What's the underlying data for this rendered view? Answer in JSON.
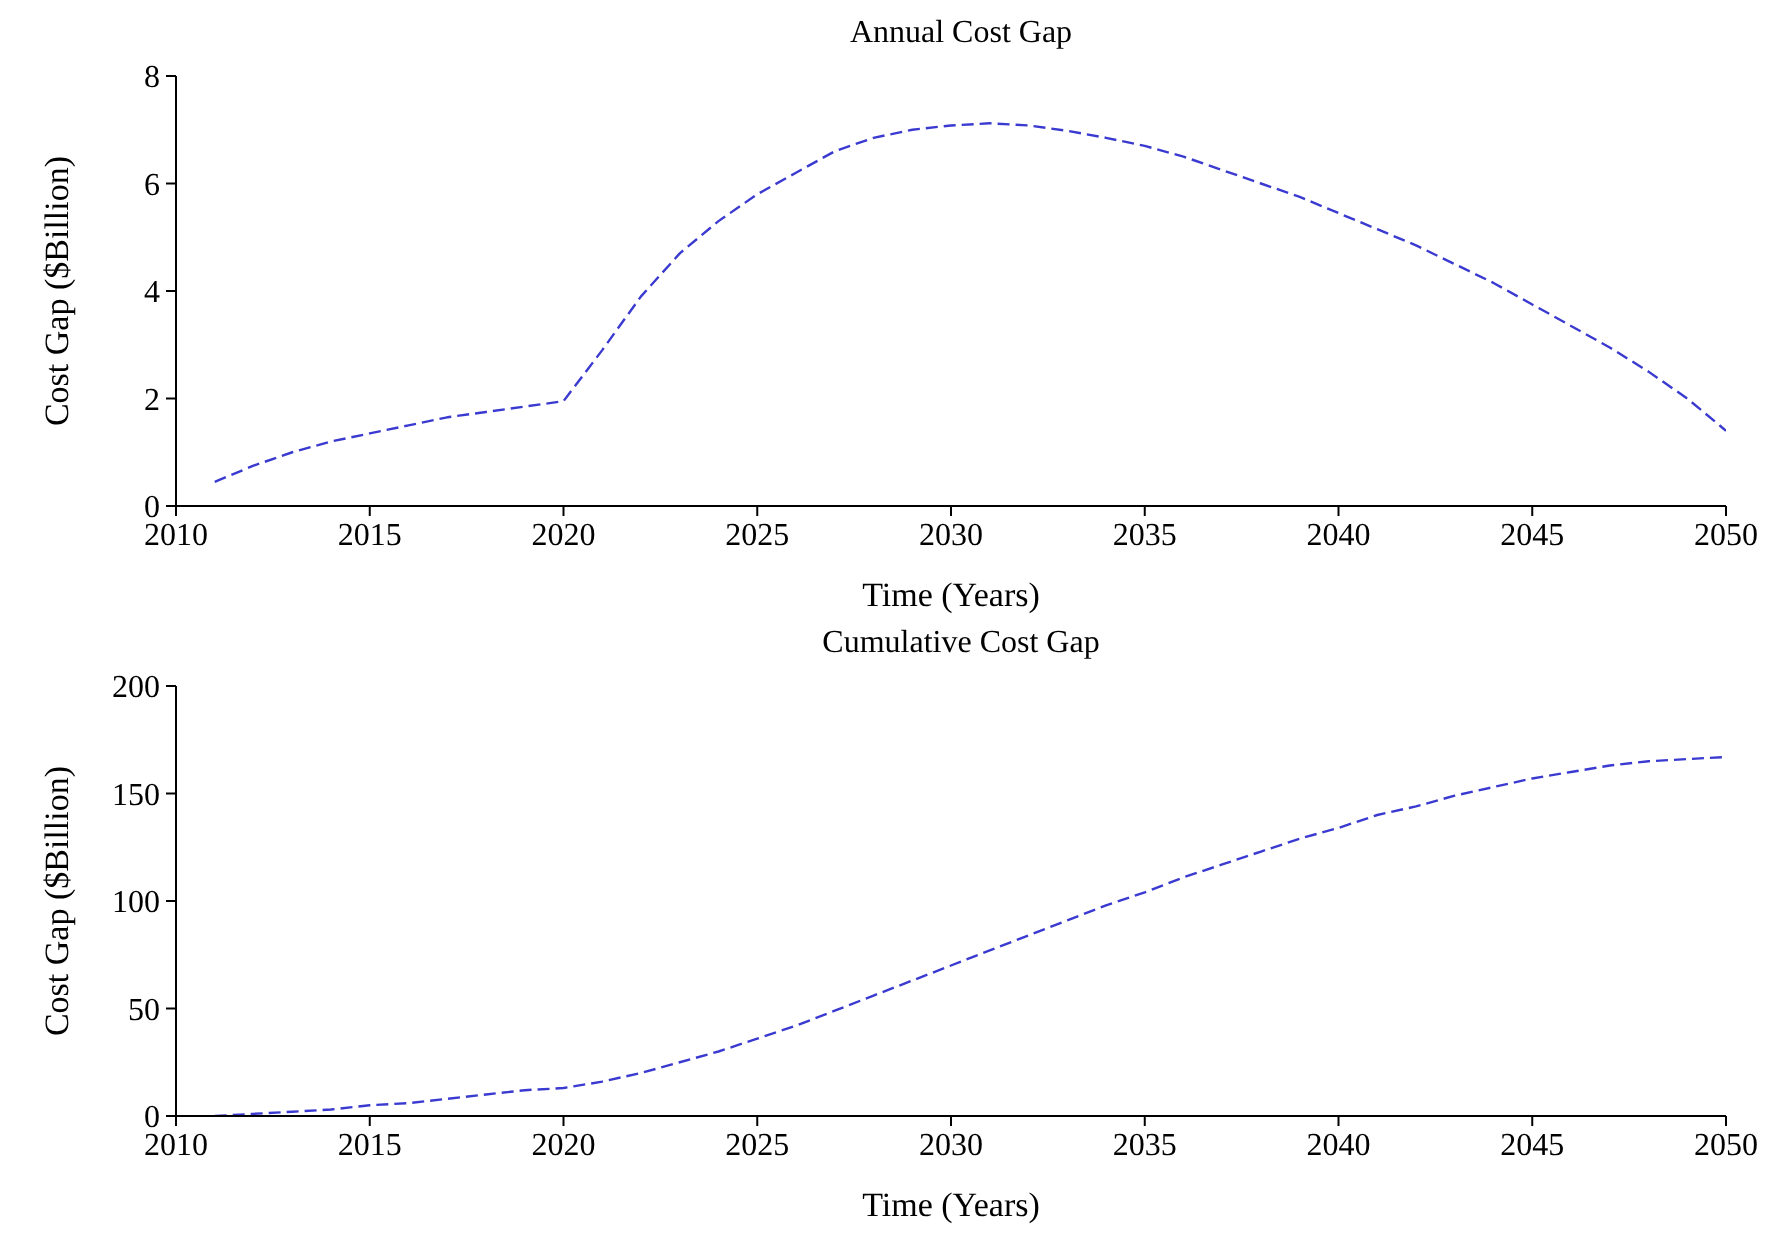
{
  "chart_data": [
    {
      "type": "line",
      "title": "Annual Cost Gap",
      "xlabel": "Time (Years)",
      "ylabel": "Cost Gap ($Billion)",
      "line_style": "dashed",
      "grid": false,
      "x": [
        2011,
        2012,
        2013,
        2014,
        2015,
        2016,
        2017,
        2018,
        2019,
        2020,
        2021,
        2022,
        2023,
        2024,
        2025,
        2026,
        2027,
        2028,
        2029,
        2030,
        2031,
        2032,
        2033,
        2034,
        2035,
        2036,
        2037,
        2038,
        2039,
        2040,
        2041,
        2042,
        2043,
        2044,
        2045,
        2046,
        2047,
        2048,
        2049,
        2050
      ],
      "series": [
        {
          "color": "#3a3ad0",
          "values": [
            0.45,
            0.75,
            1.0,
            1.2,
            1.35,
            1.5,
            1.65,
            1.75,
            1.85,
            1.95,
            2.9,
            3.9,
            4.7,
            5.3,
            5.8,
            6.2,
            6.6,
            6.85,
            7.0,
            7.08,
            7.12,
            7.08,
            6.98,
            6.85,
            6.7,
            6.5,
            6.25,
            6.0,
            5.75,
            5.45,
            5.15,
            4.85,
            4.5,
            4.15,
            3.75,
            3.35,
            2.95,
            2.5,
            2.0,
            1.4
          ]
        }
      ],
      "xlim": [
        2010,
        2050
      ],
      "xticks": [
        2010,
        2015,
        2020,
        2025,
        2030,
        2035,
        2040,
        2045,
        2050
      ],
      "ylim": [
        0,
        8
      ],
      "yticks": [
        0,
        2,
        4,
        6,
        8
      ]
    },
    {
      "type": "line",
      "title": "Cumulative Cost Gap",
      "xlabel": "Time (Years)",
      "ylabel": "Cost Gap ($Billion)",
      "line_style": "dashed",
      "grid": false,
      "x": [
        2011,
        2012,
        2013,
        2014,
        2015,
        2016,
        2017,
        2018,
        2019,
        2020,
        2021,
        2022,
        2023,
        2024,
        2025,
        2026,
        2027,
        2028,
        2029,
        2030,
        2031,
        2032,
        2033,
        2034,
        2035,
        2036,
        2037,
        2038,
        2039,
        2040,
        2041,
        2042,
        2043,
        2044,
        2045,
        2046,
        2047,
        2048,
        2049,
        2050
      ],
      "series": [
        {
          "color": "#3a3ad0",
          "values": [
            0,
            1,
            2,
            3,
            5,
            6,
            8,
            10,
            12,
            13,
            16,
            20,
            25,
            30,
            36,
            42,
            49,
            56,
            63,
            70,
            77,
            84,
            91,
            98,
            104,
            111,
            117,
            123,
            129,
            134,
            140,
            144,
            149,
            153,
            157,
            160,
            163,
            165,
            166,
            167
          ]
        }
      ],
      "xlim": [
        2010,
        2050
      ],
      "xticks": [
        2010,
        2015,
        2020,
        2025,
        2030,
        2035,
        2040,
        2045,
        2050
      ],
      "ylim": [
        0,
        200
      ],
      "yticks": [
        0,
        50,
        100,
        150,
        200
      ]
    }
  ]
}
